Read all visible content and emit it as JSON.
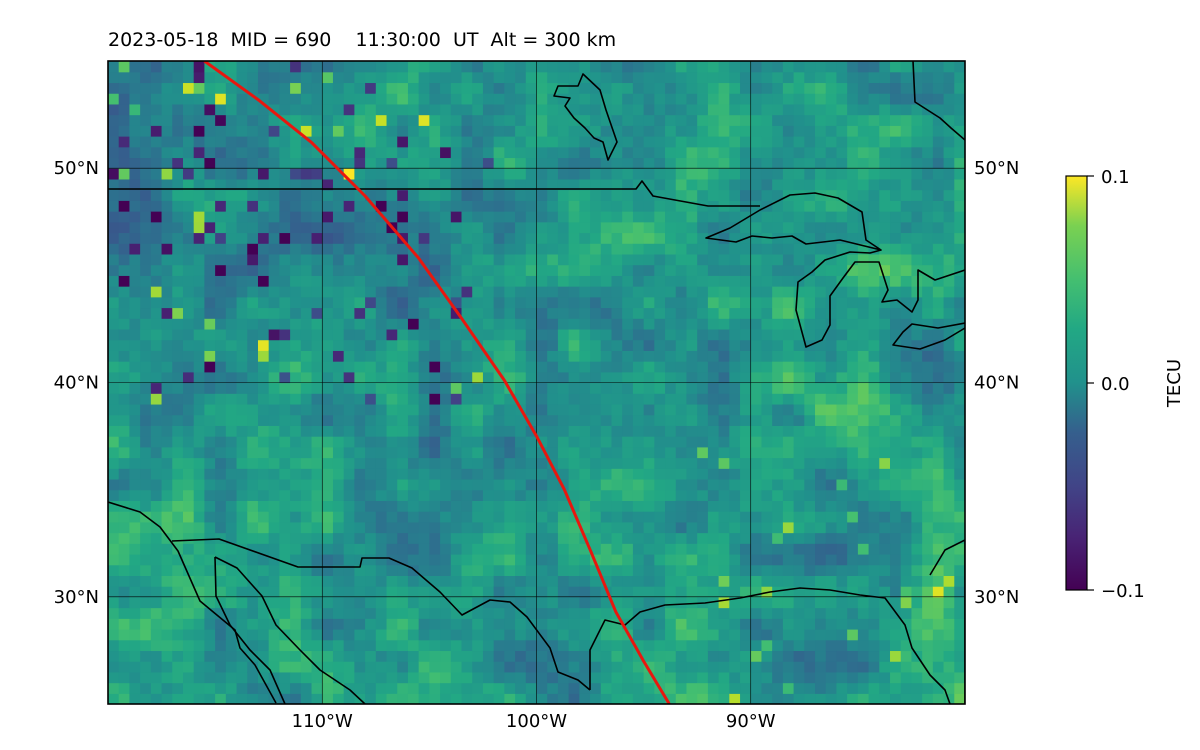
{
  "title": "2023-05-18  MID = 690    11:30:00  UT  Alt = 300 km",
  "chart_data": {
    "type": "heatmap",
    "title": "2023-05-18  MID = 690    11:30:00  UT  Alt = 300 km",
    "projection": "equirectangular",
    "lon_range": [
      -120,
      -80
    ],
    "lat_range": [
      25,
      55
    ],
    "x_ticks": [
      -110,
      -100,
      -90
    ],
    "x_tick_labels": [
      "110°W",
      "100°W",
      "90°W"
    ],
    "y_ticks": [
      30,
      40,
      50
    ],
    "y_tick_labels": [
      "30°N",
      "40°N",
      "50°N"
    ],
    "grid": true,
    "colormap": "viridis",
    "colorbar": {
      "label": "TECU",
      "vmin": -0.1,
      "vmax": 0.1,
      "ticks": [
        0.1,
        0.0,
        -0.1
      ],
      "tick_labels": [
        "0.1",
        "0.0",
        "−0.1"
      ],
      "position": "right"
    },
    "grid_resolution_deg": 0.5,
    "field_description_values": {
      "background_mean": 0.0,
      "west_noise_amplitude": 0.05,
      "east_positive_bias": 0.03
    },
    "track": {
      "color": "#e8170f",
      "points": [
        [
          -115.5,
          55
        ],
        [
          -113,
          53.2
        ],
        [
          -110.5,
          51.2
        ],
        [
          -108,
          48.7
        ],
        [
          -105.5,
          45.8
        ],
        [
          -103.5,
          43
        ],
        [
          -101.5,
          40.1
        ],
        [
          -100,
          37.5
        ],
        [
          -98.7,
          35
        ],
        [
          -97.5,
          32.2
        ],
        [
          -96.3,
          29.3
        ],
        [
          -95,
          27
        ],
        [
          -93.8,
          25
        ]
      ]
    }
  },
  "colors": {
    "frame": "#000000",
    "coastline": "#000000",
    "grid": "#000000",
    "track": "#e8170f"
  }
}
